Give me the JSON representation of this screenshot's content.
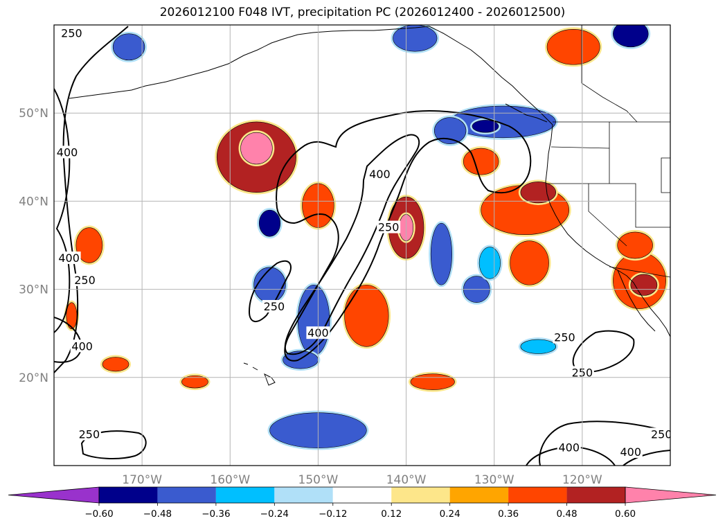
{
  "figure": {
    "title": "2026012100 F048 IVT, precipitation PC (2026012400 - 2026012500)"
  },
  "map": {
    "lat_labels": [
      "50°N",
      "40°N",
      "30°N",
      "20°N"
    ],
    "lon_labels": [
      "170°W",
      "160°W",
      "150°W",
      "140°W",
      "130°W",
      "120°W"
    ],
    "lat_values": [
      50,
      40,
      30,
      20
    ],
    "lon_values": [
      -170,
      -160,
      -150,
      -140,
      -130,
      -120
    ],
    "extent": {
      "lon_min": -180,
      "lon_max": -110,
      "lat_min": 10,
      "lat_max": 60
    }
  },
  "ivt_contours": {
    "levels": [
      250,
      400
    ],
    "labels": [
      {
        "text": "250",
        "lon": -178,
        "lat": 59
      },
      {
        "text": "400",
        "lon": -178.5,
        "lat": 45.5
      },
      {
        "text": "400",
        "lon": -178.3,
        "lat": 33.5
      },
      {
        "text": "250",
        "lon": -176.5,
        "lat": 31
      },
      {
        "text": "400",
        "lon": -176.8,
        "lat": 23.5
      },
      {
        "text": "400",
        "lon": -143,
        "lat": 43
      },
      {
        "text": "250",
        "lon": -142,
        "lat": 37
      },
      {
        "text": "250",
        "lon": -155,
        "lat": 28
      },
      {
        "text": "400",
        "lon": -150,
        "lat": 25
      },
      {
        "text": "250",
        "lon": -176,
        "lat": 13.5
      },
      {
        "text": "250",
        "lon": -122,
        "lat": 24.5
      },
      {
        "text": "250",
        "lon": -120,
        "lat": 20.5
      },
      {
        "text": "400",
        "lon": -121.5,
        "lat": 12
      },
      {
        "text": "400",
        "lon": -114.5,
        "lat": 11.5
      },
      {
        "text": "250",
        "lon": -111,
        "lat": 13.5
      }
    ]
  },
  "colorbar": {
    "ticks": [
      "−0.60",
      "−0.48",
      "−0.36",
      "−0.24",
      "−0.12",
      "0.12",
      "0.24",
      "0.36",
      "0.48",
      "0.60"
    ],
    "colors": [
      "#9932CC",
      "#00008B",
      "#3A5BCF",
      "#00BFFF",
      "#B0E0F8",
      "#FFFFFF",
      "#FDE68A",
      "#FFA500",
      "#FF4500",
      "#B22222",
      "#FF82AB"
    ]
  },
  "precip_pc": [
    {
      "value": 0.5,
      "lon": -157,
      "lat": 45,
      "rx": 4.5,
      "ry": 4
    },
    {
      "value": 0.65,
      "lon": -157,
      "lat": 46,
      "rx": 1.8,
      "ry": 1.8
    },
    {
      "value": 0.4,
      "lon": -150,
      "lat": 39.5,
      "rx": 1.8,
      "ry": 2.5
    },
    {
      "value": 0.5,
      "lon": -140,
      "lat": 37,
      "rx": 2,
      "ry": 3.5
    },
    {
      "value": 0.65,
      "lon": -140,
      "lat": 37,
      "rx": 0.8,
      "ry": 1.5
    },
    {
      "value": 0.4,
      "lon": -144.5,
      "lat": 27,
      "rx": 2.5,
      "ry": 3.5
    },
    {
      "value": 0.4,
      "lon": -126.5,
      "lat": 39,
      "rx": 5,
      "ry": 2.8
    },
    {
      "value": 0.5,
      "lon": -125,
      "lat": 41,
      "rx": 2,
      "ry": 1.2
    },
    {
      "value": 0.4,
      "lon": -131.5,
      "lat": 44.5,
      "rx": 2,
      "ry": 1.5
    },
    {
      "value": 0.4,
      "lon": -126,
      "lat": 33,
      "rx": 2.2,
      "ry": 2.5
    },
    {
      "value": 0.4,
      "lon": -113.5,
      "lat": 31,
      "rx": 3,
      "ry": 3.2
    },
    {
      "value": 0.5,
      "lon": -113,
      "lat": 30.5,
      "rx": 1.5,
      "ry": 1.2
    },
    {
      "value": 0.4,
      "lon": -114,
      "lat": 35,
      "rx": 2,
      "ry": 1.5
    },
    {
      "value": 0.4,
      "lon": -121,
      "lat": 57.5,
      "rx": 3,
      "ry": 2
    },
    {
      "value": 0.4,
      "lon": -164,
      "lat": 19.5,
      "rx": 1.5,
      "ry": 0.7
    },
    {
      "value": 0.4,
      "lon": -137,
      "lat": 19.5,
      "rx": 2.5,
      "ry": 0.9
    },
    {
      "value": 0.4,
      "lon": -178,
      "lat": 27,
      "rx": 0.6,
      "ry": 1.5
    },
    {
      "value": 0.4,
      "lon": -176,
      "lat": 35,
      "rx": 1.5,
      "ry": 2
    },
    {
      "value": 0.4,
      "lon": -173,
      "lat": 21.5,
      "rx": 1.5,
      "ry": 0.8
    },
    {
      "value": -0.45,
      "lon": -129,
      "lat": 49,
      "rx": 6,
      "ry": 1.8
    },
    {
      "value": -0.6,
      "lon": -131,
      "lat": 48.5,
      "rx": 1.5,
      "ry": 0.7
    },
    {
      "value": -0.4,
      "lon": -135,
      "lat": 48,
      "rx": 1.8,
      "ry": 1.5
    },
    {
      "value": -0.4,
      "lon": -136,
      "lat": 34,
      "rx": 1.2,
      "ry": 3.5
    },
    {
      "value": -0.4,
      "lon": -150.5,
      "lat": 26.5,
      "rx": 1.8,
      "ry": 4
    },
    {
      "value": -0.4,
      "lon": -152,
      "lat": 22,
      "rx": 2,
      "ry": 1
    },
    {
      "value": -0.4,
      "lon": -150,
      "lat": 14,
      "rx": 5.5,
      "ry": 2
    },
    {
      "value": -0.4,
      "lon": -155.5,
      "lat": 30.5,
      "rx": 1.8,
      "ry": 2
    },
    {
      "value": -0.4,
      "lon": -132,
      "lat": 30,
      "rx": 1.5,
      "ry": 1.5
    },
    {
      "value": -0.3,
      "lon": -125,
      "lat": 23.5,
      "rx": 2,
      "ry": 0.8
    },
    {
      "value": -0.3,
      "lon": -130.5,
      "lat": 33,
      "rx": 1.2,
      "ry": 1.8
    },
    {
      "value": -0.5,
      "lon": -155.5,
      "lat": 37.5,
      "rx": 1.2,
      "ry": 1.5
    },
    {
      "value": -0.5,
      "lon": -114.5,
      "lat": 59,
      "rx": 2,
      "ry": 1.5
    },
    {
      "value": -0.4,
      "lon": -139,
      "lat": 58.5,
      "rx": 2.5,
      "ry": 1.5
    },
    {
      "value": -0.4,
      "lon": -171.5,
      "lat": 57.5,
      "rx": 1.8,
      "ry": 1.5
    }
  ]
}
